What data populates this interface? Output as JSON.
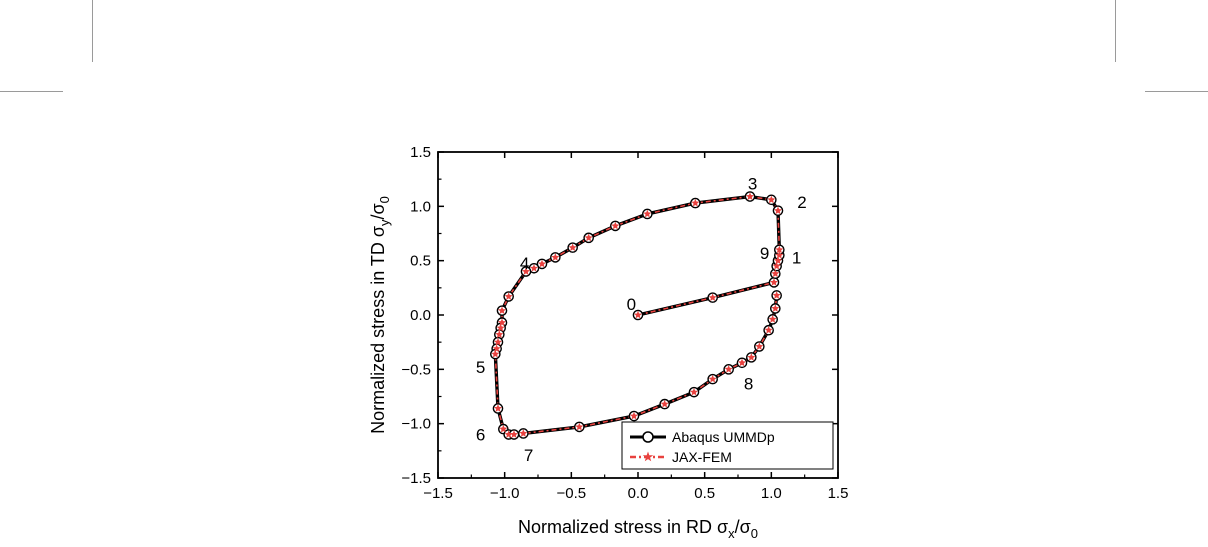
{
  "chart_data": {
    "type": "line",
    "xlabel": {
      "text": "Normalized stress in RD σ",
      "sub": "x",
      "tail": "/σ",
      "tail_sub": "0"
    },
    "ylabel": {
      "text": "Normalized stress in TD σ",
      "sub": "y",
      "tail": "/σ",
      "tail_sub": "0"
    },
    "xlim": [
      -1.5,
      1.5
    ],
    "ylim": [
      -1.5,
      1.5
    ],
    "xticks": [
      "−1.5",
      "−1.0",
      "−0.5",
      "0.0",
      "0.5",
      "1.0",
      "1.5"
    ],
    "yticks": [
      "−1.5",
      "−1.0",
      "−0.5",
      "0.0",
      "0.5",
      "1.0",
      "1.5"
    ],
    "grid": false,
    "legend_position": "bottom-right",
    "series": [
      {
        "name": "Abaqus UMMDp",
        "color": "#000000",
        "marker": "circle",
        "x": [
          0.0,
          0.56,
          1.02,
          1.03,
          1.04,
          1.05,
          1.06,
          1.06,
          1.05,
          1.0,
          0.84,
          0.43,
          0.07,
          -0.17,
          -0.37,
          -0.49,
          -0.62,
          -0.72,
          -0.78,
          -0.84,
          -0.97,
          -1.02,
          -1.02,
          -1.03,
          -1.04,
          -1.05,
          -1.06,
          -1.07,
          -1.05,
          -1.01,
          -0.97,
          -0.93,
          -0.86,
          -0.44,
          -0.03,
          0.2,
          0.42,
          0.56,
          0.68,
          0.78,
          0.85,
          0.91,
          0.98,
          1.01,
          1.03,
          1.04
        ],
        "y": [
          0.0,
          0.16,
          0.3,
          0.38,
          0.45,
          0.5,
          0.55,
          0.6,
          0.96,
          1.06,
          1.09,
          1.03,
          0.93,
          0.82,
          0.71,
          0.62,
          0.53,
          0.47,
          0.43,
          0.4,
          0.17,
          0.04,
          -0.07,
          -0.12,
          -0.18,
          -0.25,
          -0.31,
          -0.36,
          -0.86,
          -1.05,
          -1.1,
          -1.1,
          -1.09,
          -1.03,
          -0.93,
          -0.82,
          -0.71,
          -0.59,
          -0.5,
          -0.44,
          -0.39,
          -0.29,
          -0.14,
          -0.04,
          0.06,
          0.18
        ]
      },
      {
        "name": "JAX-FEM",
        "color": "#e8423f",
        "marker": "star",
        "x": [
          0.0,
          0.56,
          1.02,
          1.03,
          1.04,
          1.05,
          1.06,
          1.06,
          1.05,
          1.0,
          0.84,
          0.43,
          0.07,
          -0.17,
          -0.37,
          -0.49,
          -0.62,
          -0.72,
          -0.78,
          -0.84,
          -0.97,
          -1.02,
          -1.02,
          -1.03,
          -1.04,
          -1.05,
          -1.06,
          -1.07,
          -1.05,
          -1.01,
          -0.97,
          -0.93,
          -0.86,
          -0.44,
          -0.03,
          0.2,
          0.42,
          0.56,
          0.68,
          0.78,
          0.85,
          0.91,
          0.98,
          1.01,
          1.03,
          1.04
        ],
        "y": [
          0.0,
          0.16,
          0.3,
          0.38,
          0.45,
          0.5,
          0.55,
          0.6,
          0.96,
          1.06,
          1.09,
          1.03,
          0.93,
          0.82,
          0.71,
          0.62,
          0.53,
          0.47,
          0.43,
          0.4,
          0.17,
          0.04,
          -0.07,
          -0.12,
          -0.18,
          -0.25,
          -0.31,
          -0.36,
          -0.86,
          -1.05,
          -1.1,
          -1.1,
          -1.09,
          -1.03,
          -0.93,
          -0.82,
          -0.71,
          -0.59,
          -0.5,
          -0.44,
          -0.39,
          -0.29,
          -0.14,
          -0.04,
          0.06,
          0.18
        ]
      }
    ],
    "annotations": [
      {
        "text": "0",
        "x": -0.05,
        "y": 0.1
      },
      {
        "text": "1",
        "x": 1.19,
        "y": 0.53
      },
      {
        "text": "2",
        "x": 1.23,
        "y": 1.04
      },
      {
        "text": "3",
        "x": 0.86,
        "y": 1.21
      },
      {
        "text": "4",
        "x": -0.85,
        "y": 0.48
      },
      {
        "text": "5",
        "x": -1.18,
        "y": -0.48
      },
      {
        "text": "6",
        "x": -1.18,
        "y": -1.1
      },
      {
        "text": "7",
        "x": -0.82,
        "y": -1.29
      },
      {
        "text": "8",
        "x": 0.83,
        "y": -0.63
      },
      {
        "text": "9",
        "x": 0.95,
        "y": 0.57
      }
    ]
  }
}
